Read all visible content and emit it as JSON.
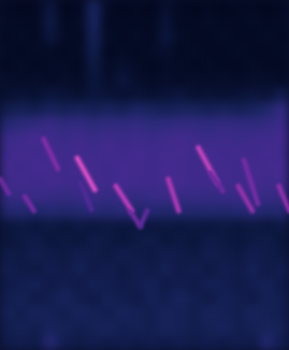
{
  "chart_data": {
    "type": "heatmap",
    "tick_labels": false,
    "xlim": [
      0,
      100
    ],
    "ylim": [
      0,
      100
    ],
    "color_range": [
      0,
      1
    ],
    "cells": [
      [
        0.1,
        0.08,
        0.1,
        0.2,
        0.08,
        0.1,
        0.3,
        0.12,
        0.08,
        0.1,
        0.08,
        0.15,
        0.1,
        0.08,
        0.1,
        0.08,
        0.1,
        0.1,
        0.08,
        0.1
      ],
      [
        0.12,
        0.1,
        0.1,
        0.22,
        0.1,
        0.12,
        0.3,
        0.1,
        0.1,
        0.1,
        0.1,
        0.18,
        0.1,
        0.1,
        0.12,
        0.1,
        0.1,
        0.12,
        0.1,
        0.12
      ],
      [
        0.1,
        0.12,
        0.1,
        0.2,
        0.12,
        0.1,
        0.28,
        0.12,
        0.1,
        0.12,
        0.1,
        0.2,
        0.12,
        0.1,
        0.1,
        0.12,
        0.1,
        0.1,
        0.12,
        0.1
      ],
      [
        0.12,
        0.1,
        0.12,
        0.12,
        0.1,
        0.12,
        0.25,
        0.1,
        0.12,
        0.1,
        0.12,
        0.15,
        0.1,
        0.12,
        0.1,
        0.1,
        0.12,
        0.1,
        0.1,
        0.12
      ],
      [
        0.1,
        0.12,
        0.1,
        0.12,
        0.12,
        0.1,
        0.22,
        0.12,
        0.15,
        0.12,
        0.1,
        0.12,
        0.12,
        0.1,
        0.12,
        0.1,
        0.1,
        0.12,
        0.1,
        0.1
      ],
      [
        0.14,
        0.12,
        0.14,
        0.12,
        0.14,
        0.12,
        0.2,
        0.14,
        0.2,
        0.14,
        0.12,
        0.14,
        0.12,
        0.14,
        0.12,
        0.14,
        0.12,
        0.14,
        0.14,
        0.12
      ],
      [
        0.16,
        0.18,
        0.16,
        0.2,
        0.18,
        0.16,
        0.2,
        0.18,
        0.16,
        0.18,
        0.16,
        0.18,
        0.2,
        0.16,
        0.18,
        0.16,
        0.18,
        0.2,
        0.18,
        0.25
      ],
      [
        0.25,
        0.28,
        0.26,
        0.3,
        0.28,
        0.3,
        0.28,
        0.3,
        0.28,
        0.32,
        0.3,
        0.28,
        0.3,
        0.3,
        0.28,
        0.3,
        0.28,
        0.3,
        0.35,
        0.45
      ],
      [
        0.38,
        0.42,
        0.45,
        0.48,
        0.44,
        0.46,
        0.42,
        0.45,
        0.44,
        0.46,
        0.42,
        0.44,
        0.46,
        0.45,
        0.44,
        0.46,
        0.45,
        0.44,
        0.46,
        0.5
      ],
      [
        0.5,
        0.52,
        0.55,
        0.52,
        0.5,
        0.52,
        0.5,
        0.52,
        0.5,
        0.52,
        0.5,
        0.52,
        0.54,
        0.52,
        0.5,
        0.52,
        0.5,
        0.52,
        0.52,
        0.55
      ],
      [
        0.52,
        0.55,
        0.52,
        0.55,
        0.52,
        0.54,
        0.52,
        0.55,
        0.52,
        0.55,
        0.52,
        0.54,
        0.55,
        0.52,
        0.55,
        0.52,
        0.54,
        0.52,
        0.55,
        0.52
      ],
      [
        0.54,
        0.52,
        0.56,
        0.54,
        0.52,
        0.55,
        0.54,
        0.52,
        0.55,
        0.54,
        0.52,
        0.56,
        0.54,
        0.52,
        0.55,
        0.54,
        0.52,
        0.55,
        0.54,
        0.56
      ],
      [
        0.52,
        0.54,
        0.52,
        0.55,
        0.53,
        0.52,
        0.54,
        0.52,
        0.55,
        0.53,
        0.52,
        0.54,
        0.55,
        0.52,
        0.53,
        0.54,
        0.52,
        0.55,
        0.52,
        0.54
      ],
      [
        0.46,
        0.48,
        0.5,
        0.47,
        0.46,
        0.48,
        0.5,
        0.47,
        0.48,
        0.46,
        0.48,
        0.5,
        0.47,
        0.48,
        0.46,
        0.48,
        0.5,
        0.47,
        0.48,
        0.46
      ],
      [
        0.36,
        0.38,
        0.35,
        0.38,
        0.36,
        0.38,
        0.4,
        0.38,
        0.42,
        0.36,
        0.38,
        0.36,
        0.38,
        0.36,
        0.38,
        0.36,
        0.38,
        0.4,
        0.36,
        0.38
      ],
      [
        0.2,
        0.22,
        0.2,
        0.22,
        0.2,
        0.22,
        0.2,
        0.22,
        0.2,
        0.22,
        0.2,
        0.22,
        0.2,
        0.22,
        0.2,
        0.22,
        0.2,
        0.22,
        0.2,
        0.22
      ],
      [
        0.2,
        0.22,
        0.24,
        0.2,
        0.22,
        0.2,
        0.24,
        0.22,
        0.2,
        0.22,
        0.24,
        0.2,
        0.22,
        0.2,
        0.24,
        0.22,
        0.2,
        0.22,
        0.24,
        0.2
      ],
      [
        0.24,
        0.22,
        0.26,
        0.24,
        0.22,
        0.26,
        0.24,
        0.22,
        0.26,
        0.24,
        0.22,
        0.26,
        0.24,
        0.22,
        0.26,
        0.24,
        0.22,
        0.26,
        0.24,
        0.22
      ],
      [
        0.26,
        0.24,
        0.22,
        0.26,
        0.24,
        0.28,
        0.24,
        0.26,
        0.22,
        0.26,
        0.24,
        0.28,
        0.24,
        0.26,
        0.22,
        0.26,
        0.24,
        0.28,
        0.24,
        0.26
      ],
      [
        0.24,
        0.26,
        0.28,
        0.24,
        0.26,
        0.24,
        0.28,
        0.26,
        0.24,
        0.26,
        0.28,
        0.24,
        0.26,
        0.24,
        0.28,
        0.26,
        0.24,
        0.26,
        0.28,
        0.24
      ],
      [
        0.26,
        0.28,
        0.24,
        0.26,
        0.3,
        0.26,
        0.24,
        0.28,
        0.26,
        0.24,
        0.28,
        0.26,
        0.3,
        0.26,
        0.24,
        0.28,
        0.26,
        0.24,
        0.28,
        0.26
      ],
      [
        0.28,
        0.26,
        0.3,
        0.28,
        0.26,
        0.3,
        0.28,
        0.26,
        0.3,
        0.28,
        0.26,
        0.3,
        0.28,
        0.26,
        0.3,
        0.28,
        0.26,
        0.3,
        0.28,
        0.26
      ],
      [
        0.26,
        0.28,
        0.26,
        0.3,
        0.28,
        0.26,
        0.28,
        0.3,
        0.26,
        0.28,
        0.26,
        0.3,
        0.28,
        0.26,
        0.28,
        0.3,
        0.26,
        0.28,
        0.3,
        0.28
      ],
      [
        0.24,
        0.26,
        0.24,
        0.38,
        0.26,
        0.24,
        0.26,
        0.24,
        0.26,
        0.24,
        0.26,
        0.24,
        0.26,
        0.24,
        0.26,
        0.24,
        0.26,
        0.24,
        0.36,
        0.26
      ]
    ],
    "calls": [
      {
        "x": [
          15.0,
          19.9
        ],
        "y": [
          60.3,
          51.9
        ],
        "level": 0.75
      },
      {
        "x": [
          0.0,
          2.9
        ],
        "y": [
          48.9,
          44.9
        ],
        "level": 0.7
      },
      {
        "x": [
          8.5,
          11.6
        ],
        "y": [
          43.9,
          39.9
        ],
        "level": 0.72
      },
      {
        "x": [
          26.6,
          32.7
        ],
        "y": [
          54.9,
          45.9
        ],
        "level": 0.95
      },
      {
        "x": [
          27.8,
          31.5
        ],
        "y": [
          47.9,
          40.3
        ],
        "level": 0.6
      },
      {
        "x": [
          40.0,
          45.5
        ],
        "y": [
          46.9,
          39.9
        ],
        "level": 0.88
      },
      {
        "x": [
          44.8,
          48.4
        ],
        "y": [
          39.9,
          35.5
        ],
        "level": 0.7
      },
      {
        "x": [
          48.4,
          50.8
        ],
        "y": [
          35.5,
          39.9
        ],
        "level": 0.65
      },
      {
        "x": [
          58.1,
          61.7
        ],
        "y": [
          48.9,
          39.9
        ],
        "level": 0.85
      },
      {
        "x": [
          68.5,
          75.1
        ],
        "y": [
          57.9,
          47.9
        ],
        "level": 0.9
      },
      {
        "x": [
          72.6,
          77.0
        ],
        "y": [
          50.9,
          45.5
        ],
        "level": 0.7
      },
      {
        "x": [
          82.3,
          87.2
        ],
        "y": [
          46.9,
          39.9
        ],
        "level": 0.8
      },
      {
        "x": [
          84.3,
          89.1
        ],
        "y": [
          54.3,
          41.9
        ],
        "level": 0.72
      },
      {
        "x": [
          96.4,
          100.0
        ],
        "y": [
          46.9,
          39.9
        ],
        "level": 0.78
      }
    ]
  }
}
